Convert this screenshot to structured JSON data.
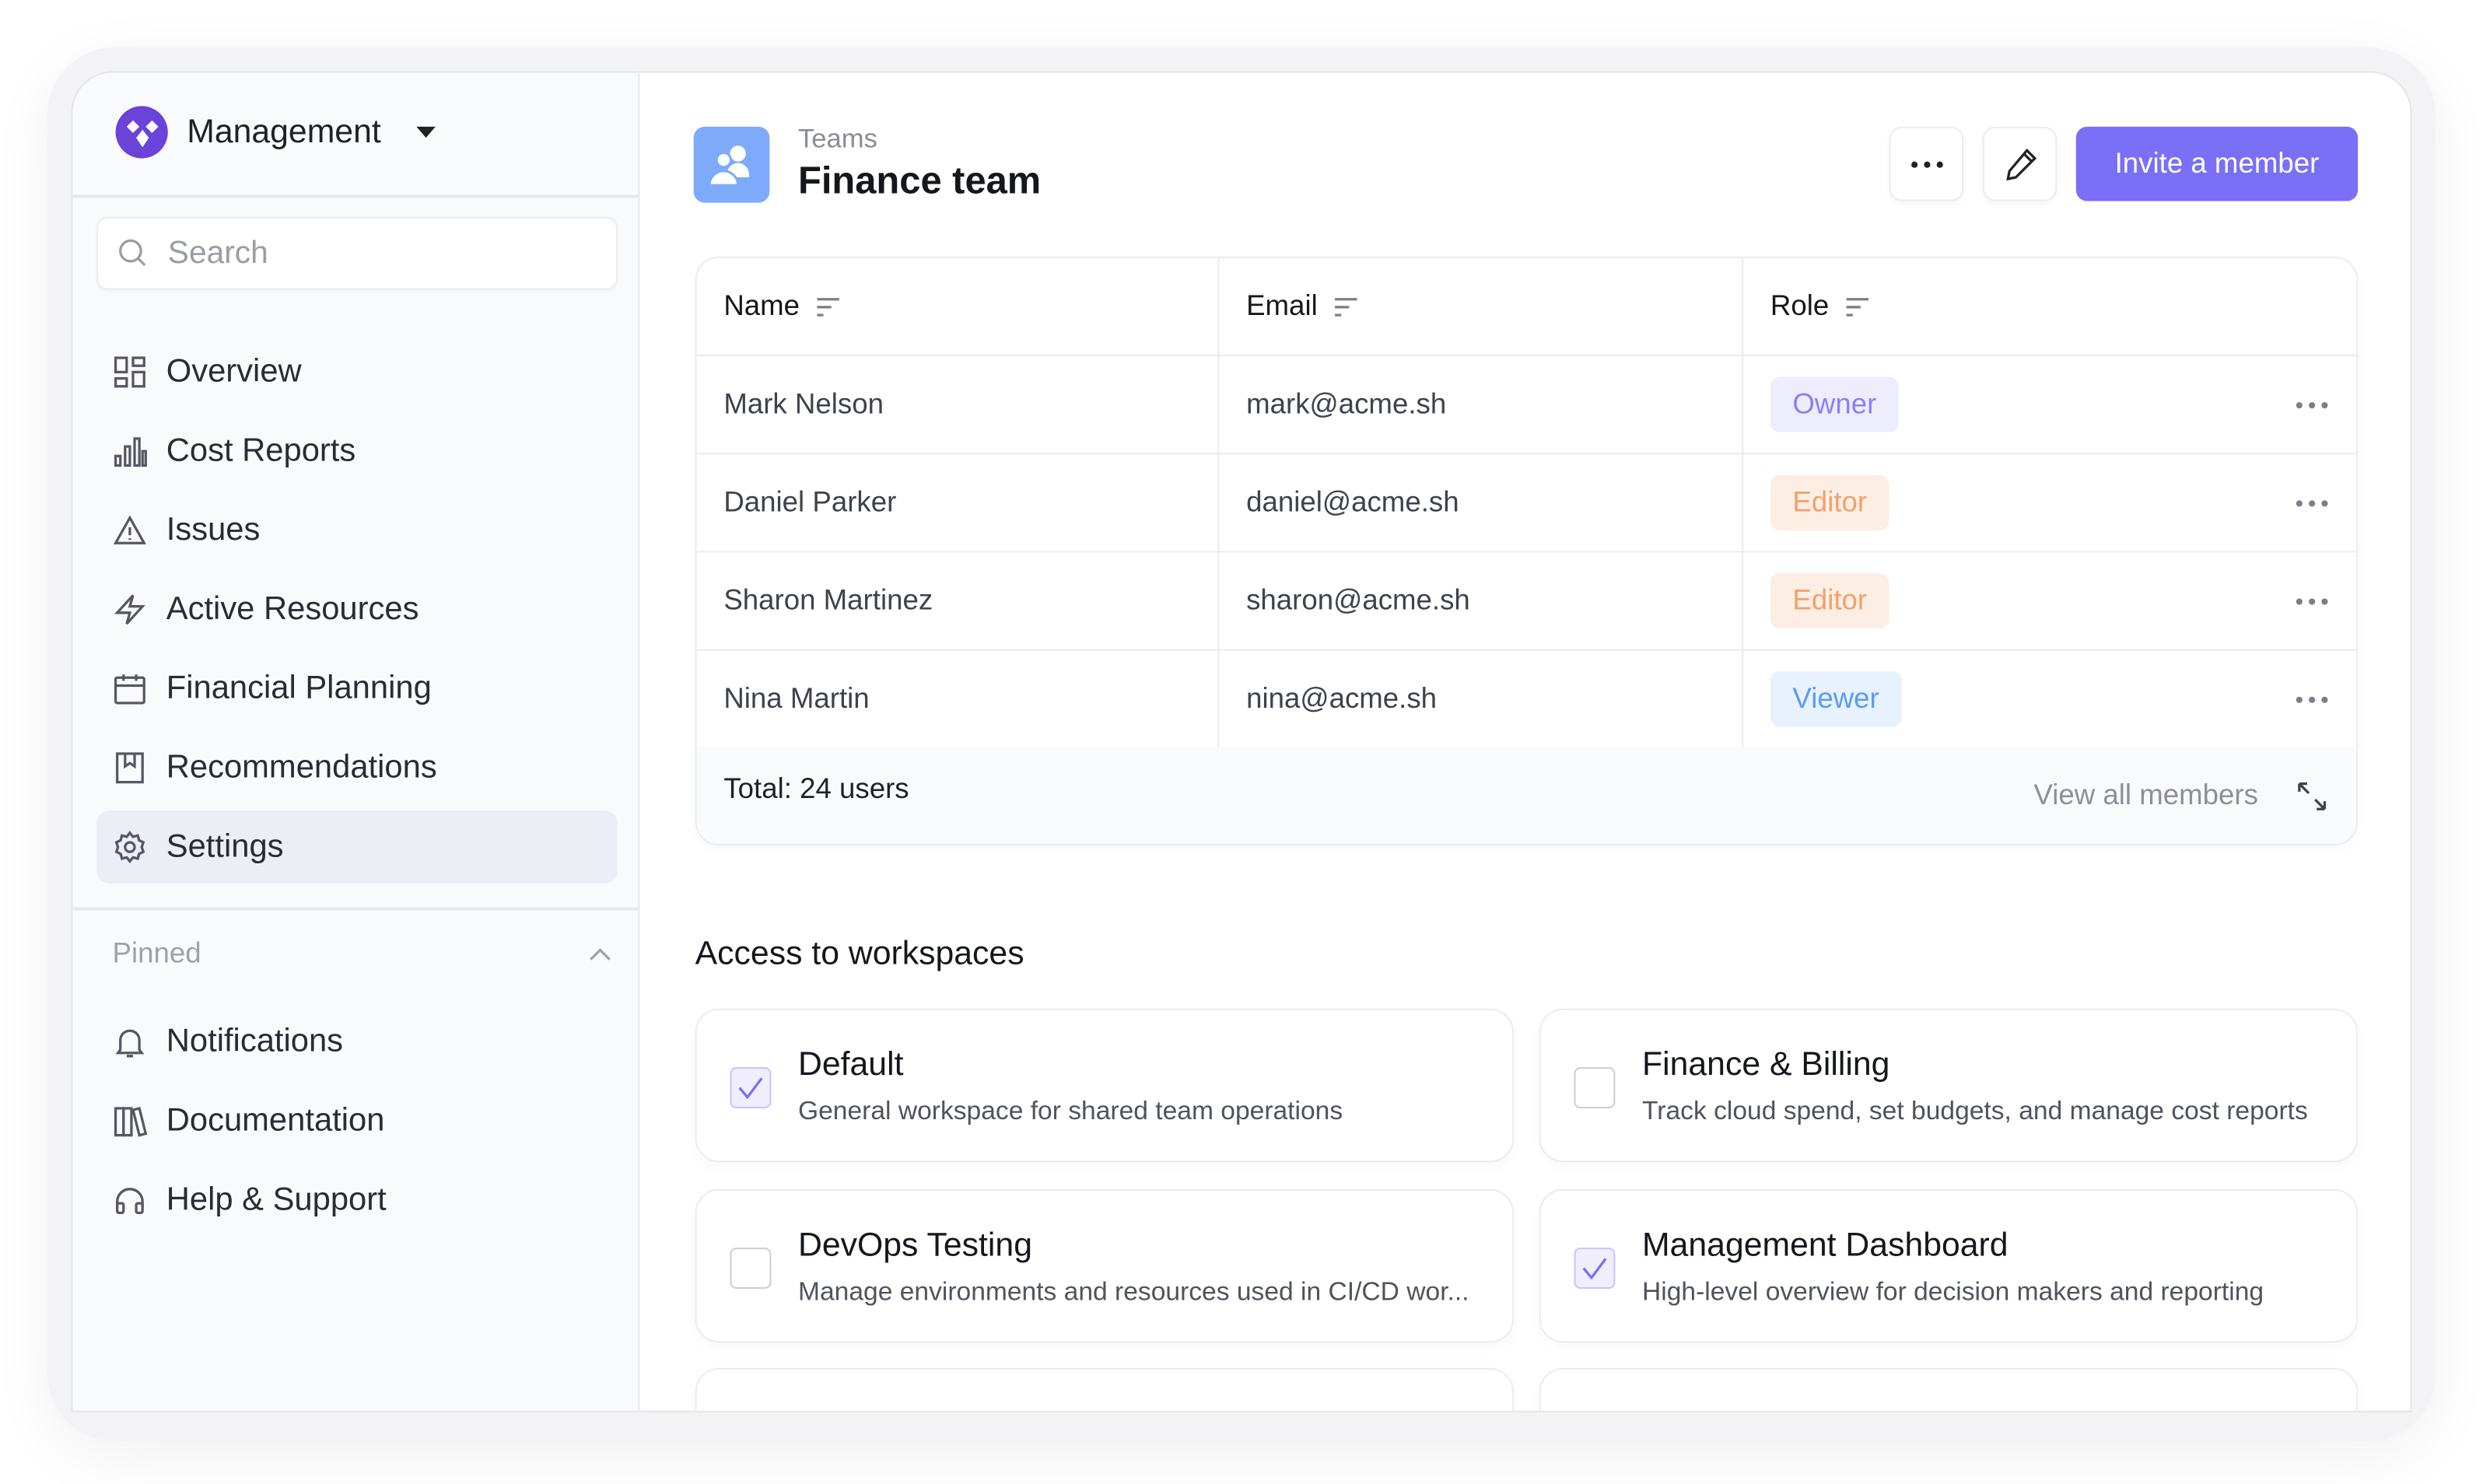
{
  "sidebar": {
    "workspace_name": "Management",
    "search_placeholder": "Search",
    "items": [
      {
        "label": "Overview",
        "icon": "grid-icon"
      },
      {
        "label": "Cost Reports",
        "icon": "bar-chart-icon"
      },
      {
        "label": "Issues",
        "icon": "warning-icon"
      },
      {
        "label": "Active Resources",
        "icon": "lightning-icon"
      },
      {
        "label": "Financial Planning",
        "icon": "calendar-icon"
      },
      {
        "label": "Recommendations",
        "icon": "bookmark-icon"
      },
      {
        "label": "Settings",
        "icon": "gear-icon",
        "active": true
      }
    ],
    "pinned_label": "Pinned",
    "pinned": [
      {
        "label": "Notifications",
        "icon": "bell-icon"
      },
      {
        "label": "Documentation",
        "icon": "books-icon"
      },
      {
        "label": "Help & Support",
        "icon": "headphones-icon"
      }
    ]
  },
  "header": {
    "breadcrumb": "Teams",
    "title": "Finance team",
    "invite_label": "Invite a member"
  },
  "table": {
    "columns": [
      "Name",
      "Email",
      "Role"
    ],
    "rows": [
      {
        "name": "Mark Nelson",
        "email": "mark@acme.sh",
        "role": "Owner"
      },
      {
        "name": "Daniel Parker",
        "email": "daniel@acme.sh",
        "role": "Editor"
      },
      {
        "name": "Sharon Martinez",
        "email": "sharon@acme.sh",
        "role": "Editor"
      },
      {
        "name": "Nina Martin",
        "email": "nina@acme.sh",
        "role": "Viewer"
      }
    ],
    "total": "Total: 24 users",
    "view_all": "View all members"
  },
  "role_colors": {
    "Owner": {
      "bg": "#eeedfe",
      "fg": "#8b7ff5"
    },
    "Editor": {
      "bg": "#fdeee4",
      "fg": "#f3a06c"
    },
    "Viewer": {
      "bg": "#e8f1fe",
      "fg": "#5a9cf5"
    }
  },
  "colors": {
    "accent": "#7a6ff7",
    "logo": "#6a43d8",
    "team_icon": "#7eaafb"
  },
  "workspaces": {
    "title": "Access to workspaces",
    "items": [
      {
        "name": "Default",
        "description": "General workspace for shared team operations",
        "checked": true
      },
      {
        "name": "Finance & Billing",
        "description": "Track cloud spend, set budgets, and manage cost reports",
        "checked": false
      },
      {
        "name": "DevOps Testing",
        "description": "Manage environments and resources used in CI/CD wor...",
        "checked": false
      },
      {
        "name": "Management Dashboard",
        "description": "High-level overview for decision makers and reporting",
        "checked": true
      }
    ]
  }
}
